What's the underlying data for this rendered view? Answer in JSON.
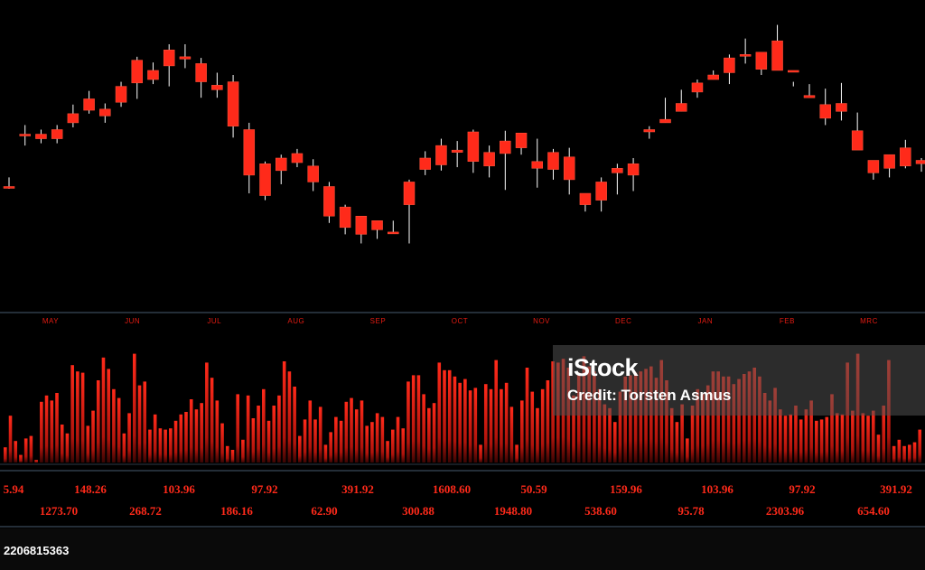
{
  "chart_data": [
    {
      "type": "candlestick",
      "months": [
        "MAY",
        "JUN",
        "JUL",
        "AUG",
        "SEP",
        "OCT",
        "NOV",
        "DEC",
        "JAN",
        "FEB",
        "MRC"
      ],
      "ohlc": [
        [
          2,
          2,
          10,
          0
        ],
        [
          48,
          48,
          56,
          38
        ],
        [
          48,
          44,
          52,
          40
        ],
        [
          44,
          52,
          56,
          40
        ],
        [
          66,
          58,
          74,
          54
        ],
        [
          69,
          79,
          86,
          66
        ],
        [
          64,
          70,
          75,
          58
        ],
        [
          76,
          90,
          94,
          72
        ],
        [
          93,
          113,
          116,
          79
        ],
        [
          96,
          104,
          111,
          92
        ],
        [
          108,
          122,
          127,
          90
        ],
        [
          114,
          116,
          127,
          106
        ],
        [
          110,
          94,
          115,
          80
        ],
        [
          87,
          91,
          102,
          80
        ],
        [
          94,
          55,
          100,
          45
        ],
        [
          52,
          12,
          58,
          -4
        ],
        [
          22,
          -6,
          24,
          -10
        ],
        [
          27,
          16,
          30,
          4
        ],
        [
          23,
          31,
          35,
          19
        ],
        [
          20,
          6,
          26,
          -2
        ],
        [
          2,
          -24,
          6,
          -30
        ],
        [
          -16,
          -34,
          -14,
          -40
        ],
        [
          -24,
          -40,
          -26,
          -48
        ],
        [
          -28,
          -36,
          -28,
          -44
        ],
        [
          -38,
          -38,
          -28,
          -38
        ],
        [
          -14,
          6,
          8,
          -48
        ],
        [
          17,
          27,
          33,
          12
        ],
        [
          21,
          38,
          44,
          16
        ],
        [
          34,
          32,
          42,
          19
        ],
        [
          50,
          24,
          52,
          14
        ],
        [
          32,
          20,
          38,
          10
        ],
        [
          31,
          42,
          51,
          -1
        ],
        [
          49,
          36,
          40,
          30
        ],
        [
          18,
          24,
          44,
          1
        ],
        [
          17,
          32,
          35,
          8
        ],
        [
          28,
          8,
          36,
          -5
        ],
        [
          -4,
          -14,
          -6,
          -20
        ],
        [
          -10,
          6,
          10,
          -20
        ],
        [
          18,
          14,
          22,
          -5
        ],
        [
          22,
          12,
          27,
          -2
        ],
        [
          52,
          50,
          55,
          44
        ],
        [
          58,
          61,
          80,
          58
        ],
        [
          68,
          75,
          87,
          68
        ],
        [
          93,
          85,
          96,
          80
        ],
        [
          100,
          96,
          104,
          96
        ],
        [
          115,
          102,
          118,
          92
        ],
        [
          118,
          118,
          132,
          110
        ],
        [
          120,
          105,
          119,
          100
        ],
        [
          130,
          104,
          144,
          105
        ],
        [
          103,
          104,
          94,
          90
        ],
        [
          80,
          82,
          92,
          80
        ],
        [
          74,
          62,
          88,
          56
        ],
        [
          68,
          75,
          93,
          60
        ],
        [
          51,
          34,
          67,
          40
        ],
        [
          25,
          14,
          24,
          8
        ],
        [
          18,
          30,
          30,
          10
        ],
        [
          36,
          20,
          43,
          18
        ],
        [
          25,
          22,
          27,
          15
        ],
        [
          38,
          36,
          64,
          35
        ],
        [
          35,
          24,
          40,
          10
        ],
        [
          -8,
          -18,
          -6,
          -36
        ],
        [
          -24,
          -48,
          -22,
          -54
        ],
        [
          -42,
          -48,
          -46,
          -56
        ],
        [
          -38,
          -48,
          -38,
          -68
        ],
        [
          -42,
          -54,
          -44,
          -64
        ],
        [
          -42,
          -70,
          -50,
          -84
        ],
        [
          -46,
          -62,
          -46,
          -74
        ],
        [
          -58,
          -66,
          -56,
          -66
        ],
        [
          -50,
          -48,
          -50,
          -58
        ],
        [
          -26,
          -30,
          -18,
          -44
        ],
        [
          -14,
          0,
          -6,
          -24
        ],
        [
          -8,
          2,
          -10,
          -12
        ]
      ],
      "ylim": [
        -100,
        150
      ],
      "grid": false,
      "legend": "none"
    },
    {
      "type": "bar",
      "values": [
        12,
        37,
        17,
        6,
        19,
        21,
        2,
        48,
        53,
        49,
        55,
        30,
        23,
        77,
        72,
        71,
        29,
        41,
        65,
        83,
        74,
        58,
        51,
        23,
        39,
        86,
        61,
        64,
        26,
        38,
        27,
        26,
        27,
        33,
        38,
        40,
        50,
        42,
        47,
        79,
        67,
        49,
        31,
        13,
        10,
        54,
        18,
        53,
        35,
        45,
        58,
        33,
        45,
        53,
        80,
        72,
        60,
        21,
        34,
        49,
        34,
        44,
        14,
        24,
        36,
        33,
        48,
        51,
        42,
        49,
        29,
        32,
        39,
        36,
        17,
        26,
        36,
        27,
        64,
        69,
        69,
        54,
        43,
        47,
        79,
        73,
        73,
        68,
        63,
        66,
        57,
        59,
        14,
        62,
        58,
        81,
        58,
        63,
        44,
        14,
        49,
        75,
        56,
        43,
        58,
        65,
        80,
        79,
        82,
        75,
        53,
        71,
        84,
        76,
        72,
        58,
        46,
        43,
        32,
        56,
        68,
        69,
        71,
        72,
        74,
        76,
        67,
        81,
        65,
        43,
        32,
        46,
        19,
        45,
        58,
        54,
        61,
        72,
        72,
        68,
        68,
        62,
        66,
        70,
        72,
        75,
        68,
        55,
        49,
        59,
        42,
        37,
        38,
        45,
        34,
        42,
        49,
        33,
        34,
        36,
        54,
        39,
        38,
        79,
        41,
        86,
        39,
        37,
        41,
        22,
        45,
        81,
        13,
        18,
        13,
        14,
        16,
        26
      ],
      "ylim": [
        0,
        100
      ],
      "grid": false,
      "legend": "none"
    }
  ],
  "price_labels": {
    "row1": [
      "5.94",
      "148.26",
      "103.96",
      "97.92",
      "391.92",
      "1608.60",
      "50.59",
      "159.96",
      "103.96",
      "97.92",
      "391.92"
    ],
    "row2": [
      "1273.70",
      "268.72",
      "186.16",
      "62.90",
      "300.88",
      "1948.80",
      "538.60",
      "95.78",
      "2303.96",
      "654.60"
    ]
  },
  "watermark": {
    "brand": "iStock",
    "credit": "Credit: Torsten Asmus"
  },
  "image_id": "2206815363",
  "colors": {
    "candle": "#ff2a1a",
    "wick": "#ffffff",
    "axis_line": "#3a4a5a",
    "label": "#ff2a1a"
  }
}
